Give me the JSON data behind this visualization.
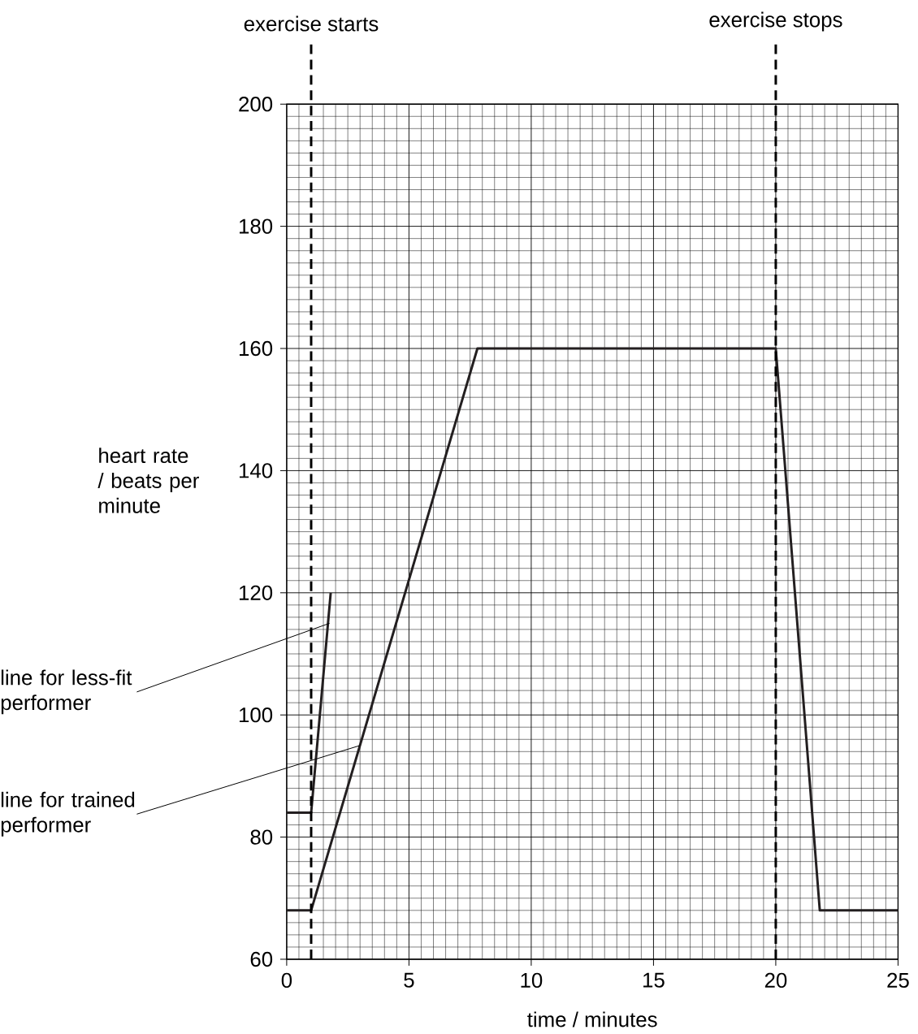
{
  "chart_data": {
    "type": "line",
    "xlabel": "time / minutes",
    "ylabel": "heart rate / beats per minute",
    "xlim": [
      0,
      25
    ],
    "ylim": [
      60,
      200
    ],
    "xticks": [
      0,
      5,
      10,
      15,
      20,
      25
    ],
    "yticks": [
      60,
      80,
      100,
      120,
      140,
      160,
      180,
      200
    ],
    "grid": true,
    "series": [
      {
        "color": "#231f20",
        "x": [
          0,
          1,
          7.8,
          20,
          21.8,
          25
        ],
        "values": [
          68,
          68,
          160,
          160,
          68,
          68
        ]
      },
      {
        "color": "#231f20",
        "x": [
          0,
          1,
          1.8
        ],
        "values": [
          84,
          84,
          120
        ]
      }
    ],
    "ref_lines": [
      {
        "axis": "x",
        "value": 1,
        "label": "exercise starts",
        "line_style": "dashed"
      },
      {
        "axis": "x",
        "value": 20,
        "label": "exercise stops",
        "line_style": "dashed"
      }
    ],
    "annotations": [
      {
        "text": "line for less-fit performer",
        "x": 1.75,
        "y": 115
      },
      {
        "text": "line for trained performer",
        "x": 3,
        "y": 95
      }
    ]
  }
}
